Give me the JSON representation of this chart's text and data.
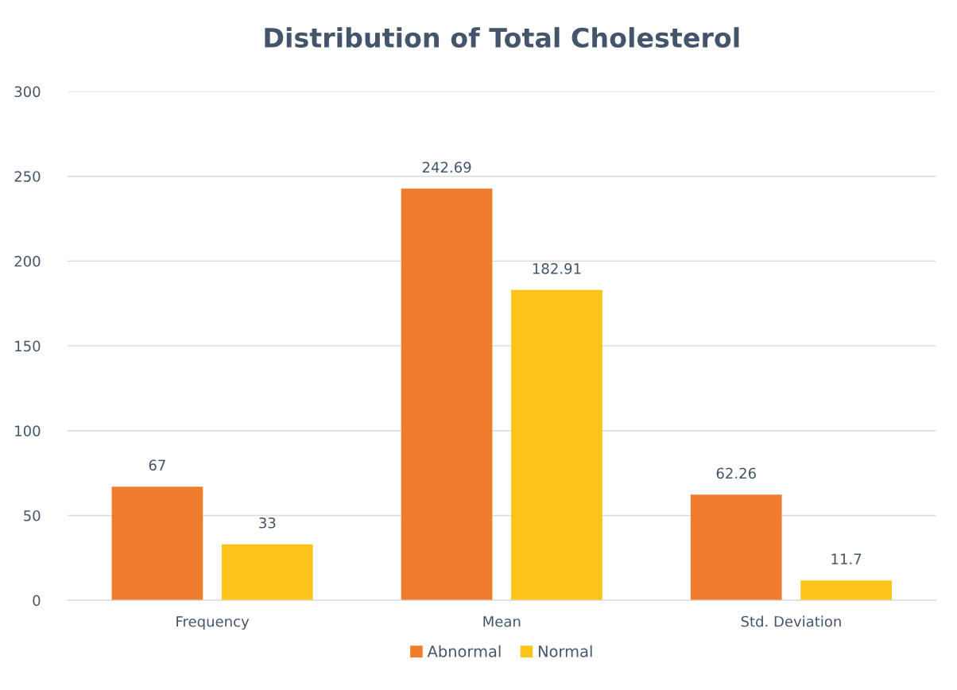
{
  "chart_data": {
    "type": "bar",
    "title": "Distribution of Total Cholesterol",
    "categories": [
      "Frequency",
      "Mean",
      "Std. Deviation"
    ],
    "series": [
      {
        "name": "Abnormal",
        "color": "#f07d2e",
        "values": [
          67,
          242.69,
          62.26
        ]
      },
      {
        "name": "Normal",
        "color": "#fcc419",
        "values": [
          33,
          182.91,
          11.7
        ]
      }
    ],
    "ylim": [
      0,
      300
    ],
    "yticks": [
      0,
      50,
      100,
      150,
      200,
      250,
      300
    ],
    "grid": "y",
    "legend": "bottom",
    "data_labels": true
  }
}
